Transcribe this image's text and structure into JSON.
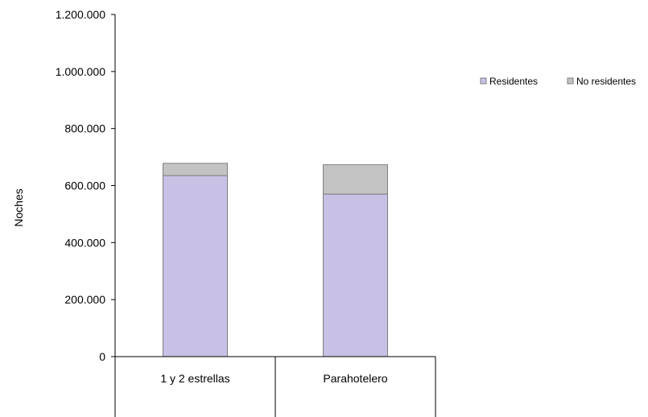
{
  "chart_data": {
    "type": "bar",
    "stacked": true,
    "categories": [
      "1 y 2 estrellas",
      "Parahotelero"
    ],
    "series": [
      {
        "name": "Residentes",
        "values": [
          635000,
          570000
        ],
        "color": "#c9c0e6"
      },
      {
        "name": "No residentes",
        "values": [
          43000,
          103000
        ],
        "color": "#c3c3c3"
      }
    ],
    "ylabel": "Noches",
    "ylim": [
      0,
      1200000
    ],
    "yticks": [
      "0",
      "200.000",
      "400.000",
      "600.000",
      "800.000",
      "1.000.000",
      "1.200.000"
    ],
    "grid": false,
    "legend_position": "right"
  }
}
